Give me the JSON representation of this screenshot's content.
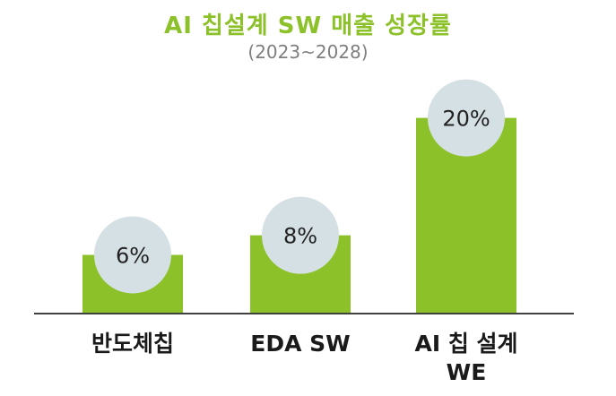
{
  "chart_data": {
    "type": "bar",
    "title": "AI 칩설계 SW 매출 성장률",
    "subtitle": "(2023~2028)",
    "categories": [
      [
        "반도체칩"
      ],
      [
        "EDA SW"
      ],
      [
        "AI 칩 설계",
        "WE"
      ]
    ],
    "values": [
      6,
      8,
      20
    ],
    "value_labels": [
      "6%",
      "8%",
      "20%"
    ],
    "ylim": [
      0,
      25
    ],
    "grid": false,
    "legend": "none"
  },
  "colors": {
    "bar": "#8cc12a",
    "bubble": "#d5e0e4",
    "axis": "#404040",
    "title": "#8cc12a",
    "subtitle": "#7f7f7f"
  }
}
